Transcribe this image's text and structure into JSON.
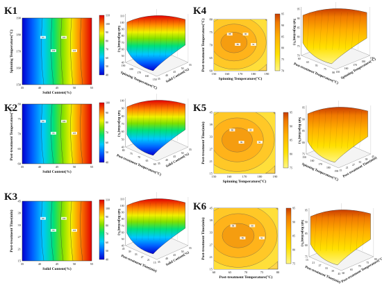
{
  "panels": [
    {
      "id": "K1",
      "contour": {
        "x": {
          "label": "Solid Content(%)",
          "ticks": [
            "35",
            "40",
            "45",
            "50",
            "55"
          ]
        },
        "y": {
          "label": "Spinning Temperature(°C)",
          "ticks": [
            "150",
            "160",
            "170",
            "180",
            "190"
          ]
        },
        "palette": "rainbow",
        "levels": [
          "95",
          "100",
          "105",
          "110"
        ]
      },
      "colorbar": {
        "ticks": [
          "110",
          "100",
          "90",
          "80",
          "70",
          "60",
          "50",
          "40"
        ]
      },
      "surface": {
        "z": {
          "label": "Salt Rejection(%)",
          "ticks": [
            "110",
            "100",
            "90",
            "80",
            "70",
            "60",
            "50",
            "40"
          ]
        },
        "front": {
          "label": "Spinning Temperature(°C)",
          "ticks": [
            "190",
            "180",
            "170",
            "160",
            "150"
          ]
        },
        "side": {
          "label": "Solid Content(%)",
          "ticks": [
            "35",
            "40",
            "45",
            "50",
            "55"
          ]
        },
        "palette": "rainbow"
      }
    },
    {
      "id": "K2",
      "contour": {
        "x": {
          "label": "Solid Content(%)",
          "ticks": [
            "35",
            "40",
            "45",
            "50",
            "55"
          ]
        },
        "y": {
          "label": "Post-treatment Temperature(°C)",
          "ticks": [
            "60",
            "65",
            "70",
            "75",
            "80"
          ]
        },
        "palette": "rainbow",
        "levels": [
          "90",
          "95",
          "100",
          "105"
        ]
      },
      "colorbar": {
        "ticks": [
          "100",
          "90",
          "80",
          "70",
          "60",
          "50",
          "40"
        ]
      },
      "surface": {
        "z": {
          "label": "Salt Rejection(%)",
          "ticks": [
            "100",
            "90",
            "80",
            "70",
            "60",
            "50",
            "40"
          ]
        },
        "front": {
          "label": "Post-treatment Temperature(°C)",
          "ticks": [
            "80",
            "75",
            "70",
            "65",
            "60"
          ]
        },
        "side": {
          "label": "Solid Content(%)",
          "ticks": [
            "35",
            "40",
            "45",
            "50",
            "55"
          ]
        },
        "palette": "rainbow"
      }
    },
    {
      "id": "K3",
      "contour": {
        "x": {
          "label": "Solid Content(%)",
          "ticks": [
            "35",
            "40",
            "45",
            "50",
            "55"
          ]
        },
        "y": {
          "label": "Post-treatment Time(min)",
          "ticks": [
            "15",
            "21",
            "27",
            "33",
            "39",
            "45"
          ]
        },
        "palette": "rainbow",
        "levels": [
          "90",
          "95",
          "100",
          "105"
        ]
      },
      "colorbar": {
        "ticks": [
          "110",
          "100",
          "90",
          "80",
          "70",
          "60",
          "50",
          "40"
        ]
      },
      "surface": {
        "z": {
          "label": "Salt Rejection(%)",
          "ticks": [
            "110",
            "100",
            "90",
            "80",
            "70",
            "60",
            "50",
            "40"
          ]
        },
        "front": {
          "label": "Post-treatment Time(min)",
          "ticks": [
            "45",
            "39",
            "33",
            "27",
            "21",
            "15"
          ]
        },
        "side": {
          "label": "Solid Content(%)",
          "ticks": [
            "35",
            "40",
            "45",
            "50",
            "55"
          ]
        },
        "palette": "rainbow"
      }
    },
    {
      "id": "K4",
      "contour": {
        "x": {
          "label": "Spinning Temperature(°C)",
          "ticks": [
            "150",
            "160",
            "170",
            "180",
            "190"
          ]
        },
        "y": {
          "label": "Post-treatment Temperature(°C)",
          "ticks": [
            "60",
            "65",
            "70",
            "75",
            "80"
          ]
        },
        "palette": "yellow",
        "levels": [
          "88",
          "89",
          "90",
          "91"
        ]
      },
      "colorbar": {
        "ticks": [
          "95",
          "90",
          "85",
          "80",
          "75",
          "70"
        ]
      },
      "surface": {
        "z": {
          "label": "Salt Rejection(%)",
          "ticks": [
            "95",
            "90",
            "85",
            "80",
            "75",
            "70"
          ]
        },
        "front": {
          "label": "Post-treatment Temperature(°C)",
          "ticks": [
            "60",
            "65",
            "70",
            "75",
            "80"
          ]
        },
        "side": {
          "label": "Spinning Temperature(°C)",
          "ticks": [
            "150",
            "160",
            "170",
            "180",
            "190"
          ]
        },
        "palette": "yellow"
      }
    },
    {
      "id": "K5",
      "contour": {
        "x": {
          "label": "Spinning Temperature(°C)",
          "ticks": [
            "150",
            "160",
            "170",
            "180",
            "190"
          ]
        },
        "y": {
          "label": "Post-treatment Time(min)",
          "ticks": [
            "15",
            "21",
            "27",
            "33",
            "39",
            "45"
          ]
        },
        "palette": "yellow",
        "levels": [
          "88",
          "89",
          "90",
          "91"
        ]
      },
      "colorbar": {
        "ticks": [
          "95",
          "90",
          "85",
          "80",
          "75"
        ]
      },
      "surface": {
        "z": {
          "label": "Salt Rejection(%)",
          "ticks": [
            "95",
            "90",
            "85",
            "80",
            "75"
          ]
        },
        "front": {
          "label": "Spinning Temperature(°C)",
          "ticks": [
            "150",
            "160",
            "170",
            "180",
            "190"
          ]
        },
        "side": {
          "label": "Post-treatment Time(min)",
          "ticks": [
            "15",
            "21",
            "27",
            "33",
            "39",
            "45"
          ]
        },
        "palette": "yellow"
      }
    },
    {
      "id": "K6",
      "contour": {
        "x": {
          "label": "Post-treatment Temperature(°C)",
          "ticks": [
            "60",
            "65",
            "70",
            "75",
            "80"
          ]
        },
        "y": {
          "label": "Post-treatment Time(min)",
          "ticks": [
            "15",
            "21",
            "27",
            "33",
            "39",
            "45"
          ]
        },
        "palette": "yellow",
        "levels": [
          "88",
          "89",
          "90",
          "91"
        ]
      },
      "colorbar": {
        "ticks": [
          "95",
          "90",
          "85",
          "80",
          "75"
        ]
      },
      "surface": {
        "z": {
          "label": "Salt Rejection(%)",
          "ticks": [
            "95",
            "90",
            "85",
            "80",
            "75"
          ]
        },
        "front": {
          "label": "Post-treatment Time(min)",
          "ticks": [
            "15",
            "21",
            "27",
            "33",
            "39",
            "45"
          ]
        },
        "side": {
          "label": "Post-treatment Temperature(°C)",
          "ticks": [
            "60",
            "65",
            "70",
            "75",
            "80"
          ]
        },
        "palette": "yellow"
      }
    }
  ]
}
